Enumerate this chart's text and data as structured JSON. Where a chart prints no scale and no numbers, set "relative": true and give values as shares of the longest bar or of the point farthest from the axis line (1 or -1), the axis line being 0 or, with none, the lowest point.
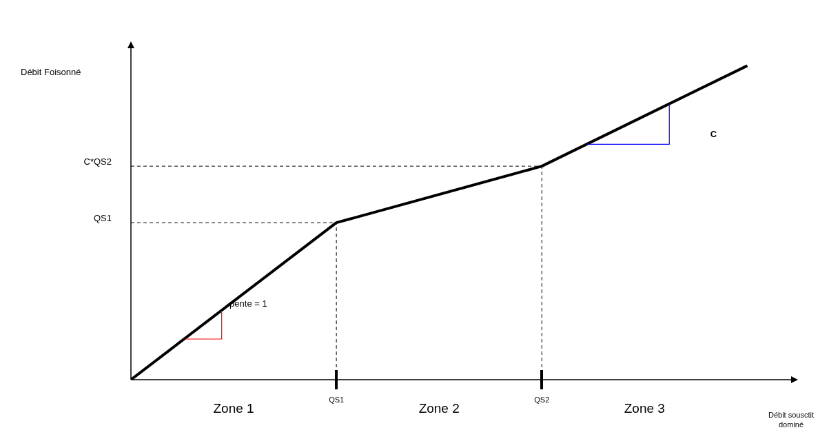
{
  "chart_data": {
    "type": "line",
    "relative": true,
    "xlabel": "Débit sousctit dominé",
    "categories": [
      null,
      "QS1",
      "QS2",
      null
    ],
    "series": [
      {
        "color": "#000000",
        "values": [
          0,
          0.5,
          0.68,
          1
        ]
      }
    ],
    "ref_lines": [
      {
        "axis": "y",
        "value": 0.5,
        "label": "QS1",
        "line_style": "dashed",
        "color": "#000000"
      },
      {
        "axis": "y",
        "value": 0.68,
        "label": "C*QS2",
        "line_style": "dashed",
        "color": "#000000"
      },
      {
        "axis": "x",
        "value": "QS1",
        "line_style": "dashed",
        "color": "#000000"
      },
      {
        "axis": "x",
        "value": "QS2",
        "line_style": "dashed",
        "color": "#000000"
      }
    ],
    "annotations": [
      "Zone 1",
      "Zone 2",
      "Zone 3",
      "pente = 1",
      "C",
      "Débit Foisonné"
    ],
    "legend": false,
    "marker": "none",
    "line_style": "solid"
  }
}
